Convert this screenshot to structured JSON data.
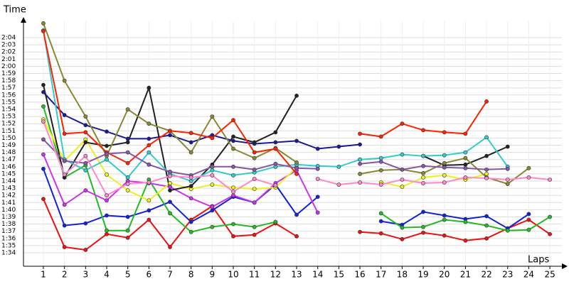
{
  "chart_data": {
    "type": "line",
    "y_label": "Time",
    "x_label": "Laps",
    "x": [
      1,
      2,
      3,
      4,
      5,
      6,
      7,
      8,
      9,
      10,
      11,
      12,
      13,
      14,
      15,
      16,
      17,
      18,
      19,
      20,
      21,
      22,
      23,
      24,
      25
    ],
    "xlim": [
      0,
      25.6
    ],
    "xticks": [
      1,
      2,
      3,
      4,
      5,
      6,
      7,
      8,
      9,
      10,
      11,
      12,
      13,
      14,
      15,
      16,
      17,
      18,
      19,
      20,
      21,
      22,
      23,
      24,
      25
    ],
    "ylim": [
      92,
      127
    ],
    "yticks": [
      {
        "value": 94,
        "label": "1:34"
      },
      {
        "value": 95,
        "label": "1:35"
      },
      {
        "value": 96,
        "label": "1:36"
      },
      {
        "value": 97,
        "label": "1:37"
      },
      {
        "value": 98,
        "label": "1:38"
      },
      {
        "value": 99,
        "label": "1:39"
      },
      {
        "value": 100,
        "label": "1:40"
      },
      {
        "value": 101,
        "label": "1:41"
      },
      {
        "value": 102,
        "label": "1:42"
      },
      {
        "value": 103,
        "label": "1:43"
      },
      {
        "value": 104,
        "label": "1:44"
      },
      {
        "value": 105,
        "label": "1:45"
      },
      {
        "value": 106,
        "label": "1:46"
      },
      {
        "value": 107,
        "label": "1:47"
      },
      {
        "value": 108,
        "label": "1:48"
      },
      {
        "value": 109,
        "label": "1:49"
      },
      {
        "value": 110,
        "label": "1:50"
      },
      {
        "value": 111,
        "label": "1:51"
      },
      {
        "value": 112,
        "label": "1:52"
      },
      {
        "value": 113,
        "label": "1:53"
      },
      {
        "value": 114,
        "label": "1:54"
      },
      {
        "value": 115,
        "label": "1:55"
      },
      {
        "value": 116,
        "label": "1:56"
      },
      {
        "value": 117,
        "label": "1:57"
      },
      {
        "value": 118,
        "label": "1:58"
      },
      {
        "value": 119,
        "label": "1:59"
      },
      {
        "value": 120,
        "label": "2:00"
      },
      {
        "value": 121,
        "label": "2:01"
      },
      {
        "value": 122,
        "label": "2:02"
      },
      {
        "value": 123,
        "label": "2:03"
      },
      {
        "value": 124,
        "label": "2:04"
      }
    ],
    "grid": true,
    "series": [
      {
        "color": "#ee1111",
        "values": [
          101.5,
          94.8,
          94.4,
          96.6,
          96.1,
          98.6,
          94.8,
          98.6,
          100.5,
          96.3,
          96.5,
          98.1,
          96.3,
          null,
          null,
          96.9,
          96.7,
          95.9,
          96.8,
          96.4,
          95.7,
          96,
          97.4,
          98.6,
          96.6
        ]
      },
      {
        "color": "#1122dd",
        "values": [
          105.7,
          97.8,
          98.1,
          99.2,
          99,
          99.9,
          101.1,
          98.3,
          99.9,
          101.8,
          101,
          103.5,
          99.3,
          101.8,
          null,
          null,
          98.4,
          97.9,
          99.7,
          99.2,
          98.7,
          99.1,
          97.4,
          99.4,
          null
        ]
      },
      {
        "color": "#22bb22",
        "values": [
          114.4,
          104.5,
          106.2,
          97.1,
          97.1,
          104.2,
          99.5,
          96.9,
          97.6,
          98,
          97.6,
          98.3,
          null,
          null,
          null,
          null,
          99.5,
          97.5,
          97.6,
          98.6,
          98.3,
          97.8,
          97.1,
          97.2,
          99
        ]
      },
      {
        "color": "#cc33ee",
        "values": [
          107.7,
          100.7,
          102.7,
          101.3,
          104,
          103.7,
          103.2,
          101.6,
          100.4,
          102,
          101,
          103.7,
          105.5,
          99.6,
          null,
          null,
          null,
          null,
          null,
          null,
          null,
          null,
          null,
          null,
          null
        ]
      },
      {
        "color": "#eeee22",
        "values": [
          112.6,
          106.8,
          109.8,
          104.9,
          102.7,
          101.3,
          103.7,
          102.9,
          103.5,
          103.1,
          102.9,
          103.1,
          105.9,
          null,
          null,
          null,
          103.8,
          103.2,
          104.5,
          104.8,
          104.2,
          105,
          null,
          null,
          null
        ]
      },
      {
        "color": "#1a1a99",
        "values": [
          116.4,
          113.2,
          111.8,
          110.9,
          109.9,
          109.9,
          110.4,
          109.4,
          110.4,
          109.6,
          109.2,
          109.4,
          109.6,
          108.5,
          108.8,
          109.1,
          null,
          null,
          null,
          null,
          null,
          null,
          null,
          null,
          null
        ]
      },
      {
        "color": "#222222",
        "values": [
          117.4,
          104.5,
          109.4,
          108.9,
          109.4,
          117,
          102.7,
          103.3,
          106.3,
          110.2,
          109.4,
          110.8,
          115.9,
          null,
          null,
          null,
          null,
          null,
          107.5,
          106.2,
          106.3,
          107.5,
          108.8,
          null,
          null
        ]
      },
      {
        "color": "#33cccc",
        "values": [
          125,
          107,
          105.5,
          107,
          104.5,
          108,
          105,
          104,
          105.5,
          104.8,
          105.2,
          106,
          106.3,
          106.1,
          106,
          107,
          107.2,
          107.7,
          107.5,
          107.6,
          108,
          110.1,
          106,
          null,
          null
        ]
      },
      {
        "color": "#888833",
        "values": [
          126,
          118,
          113,
          107.5,
          114,
          112,
          111,
          108,
          113,
          108.5,
          107.2,
          108.6,
          106.6,
          null,
          null,
          105,
          105.5,
          105.6,
          105.1,
          106.5,
          107.2,
          104.5,
          103.6,
          105.8,
          null
        ]
      },
      {
        "color": "#ff2200",
        "values": [
          124.9,
          110.6,
          110.8,
          108,
          106.5,
          109,
          111,
          110.7,
          110,
          112.5,
          108,
          108.5,
          105,
          null,
          null,
          110.6,
          110.2,
          112,
          111.1,
          110.8,
          110.6,
          115.1,
          null,
          null,
          null
        ]
      },
      {
        "color": "#8855aa",
        "values": [
          109.8,
          106.8,
          106.5,
          107.8,
          108,
          106.3,
          105.3,
          104.8,
          106,
          106,
          105.6,
          106.4,
          105.8,
          105.7,
          null,
          106.4,
          106.7,
          105.6,
          106.1,
          105.9,
          105.8,
          105.6,
          105.7,
          null,
          null
        ]
      },
      {
        "color": "#ff88cc",
        "values": [
          112.3,
          104.9,
          107.5,
          102,
          103.6,
          103.8,
          104.7,
          104.5,
          104.8,
          102.5,
          104.3,
          103.4,
          null,
          104.3,
          103.5,
          103.8,
          103.5,
          104.2,
          103.7,
          103.8,
          104.5,
          104.4,
          104.2,
          104.5,
          104.2
        ]
      }
    ]
  }
}
